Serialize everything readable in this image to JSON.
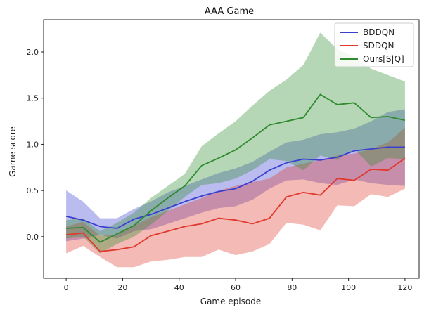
{
  "chart_data": {
    "type": "line",
    "title": "AAA Game",
    "xlabel": "Game episode",
    "ylabel": "Game score",
    "xlim": [
      -8,
      125
    ],
    "ylim": [
      -0.45,
      2.35
    ],
    "xticks": [
      0,
      20,
      40,
      60,
      80,
      100,
      120
    ],
    "yticks": [
      0.0,
      0.5,
      1.0,
      1.5,
      2.0
    ],
    "xtick_labels": [
      "0",
      "20",
      "40",
      "60",
      "80",
      "100",
      "120"
    ],
    "ytick_labels": [
      "0.0",
      "0.5",
      "1.0",
      "1.5",
      "2.0"
    ],
    "legend_position": "top-right",
    "x": [
      0,
      6,
      12,
      18,
      24,
      30,
      36,
      42,
      48,
      54,
      60,
      66,
      72,
      78,
      84,
      90,
      96,
      102,
      108,
      114,
      120
    ],
    "series": [
      {
        "name": "BDDQN",
        "color": "#3a3fd0",
        "values": [
          0.22,
          0.18,
          0.11,
          0.09,
          0.19,
          0.24,
          0.31,
          0.38,
          0.44,
          0.49,
          0.52,
          0.6,
          0.72,
          0.8,
          0.84,
          0.83,
          0.86,
          0.93,
          0.95,
          0.97,
          0.97
        ],
        "upper": [
          0.5,
          0.38,
          0.2,
          0.2,
          0.3,
          0.38,
          0.48,
          0.55,
          0.62,
          0.69,
          0.74,
          0.81,
          0.92,
          1.02,
          1.05,
          1.11,
          1.13,
          1.17,
          1.25,
          1.35,
          1.38
        ],
        "lower": [
          -0.05,
          -0.02,
          0.02,
          -0.02,
          0.06,
          0.08,
          0.14,
          0.2,
          0.26,
          0.31,
          0.33,
          0.4,
          0.52,
          0.61,
          0.62,
          0.58,
          0.56,
          0.62,
          0.58,
          0.56,
          0.55
        ]
      },
      {
        "name": "SDDQN",
        "color": "#e03a2f",
        "values": [
          0.02,
          0.04,
          -0.16,
          -0.14,
          -0.11,
          0.01,
          0.06,
          0.11,
          0.14,
          0.2,
          0.18,
          0.14,
          0.2,
          0.43,
          0.48,
          0.45,
          0.63,
          0.61,
          0.73,
          0.72,
          0.85
        ],
        "upper": [
          0.11,
          0.16,
          0.01,
          0.02,
          0.12,
          0.21,
          0.28,
          0.35,
          0.42,
          0.5,
          0.55,
          0.59,
          0.63,
          0.75,
          0.79,
          0.83,
          0.88,
          0.9,
          0.95,
          1.02,
          1.18
        ],
        "lower": [
          -0.18,
          -0.1,
          -0.22,
          -0.33,
          -0.33,
          -0.27,
          -0.25,
          -0.22,
          -0.22,
          -0.14,
          -0.2,
          -0.16,
          -0.08,
          0.15,
          0.13,
          0.07,
          0.34,
          0.33,
          0.46,
          0.43,
          0.52
        ]
      },
      {
        "name": "Ours[S|Q]",
        "color": "#2e8b2e",
        "values": [
          0.09,
          0.1,
          -0.06,
          0.03,
          0.12,
          0.28,
          0.42,
          0.55,
          0.77,
          0.85,
          0.94,
          1.07,
          1.21,
          1.25,
          1.29,
          1.54,
          1.43,
          1.45,
          1.29,
          1.3,
          1.26
        ],
        "upper": [
          0.18,
          0.2,
          0.06,
          0.15,
          0.26,
          0.42,
          0.55,
          0.68,
          0.98,
          1.12,
          1.25,
          1.42,
          1.58,
          1.7,
          1.86,
          2.21,
          2.03,
          1.95,
          1.82,
          1.75,
          1.68
        ],
        "lower": [
          -0.02,
          0.0,
          -0.18,
          -0.08,
          0.0,
          0.13,
          0.28,
          0.43,
          0.56,
          0.58,
          0.63,
          0.72,
          0.84,
          0.82,
          0.72,
          0.88,
          0.83,
          0.95,
          0.76,
          0.85,
          0.84
        ]
      }
    ]
  }
}
